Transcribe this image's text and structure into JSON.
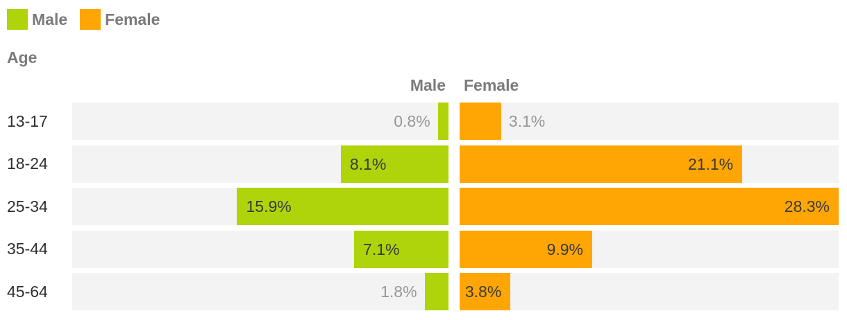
{
  "legend": {
    "items": [
      {
        "label": "Male",
        "color": "#afd40a"
      },
      {
        "label": "Female",
        "color": "#ffa605"
      }
    ]
  },
  "columns": {
    "male_header": "Male",
    "female_header": "Female"
  },
  "chart_data": {
    "type": "bar",
    "variant": "diverging-horizontal",
    "title": "",
    "axis_title": "Age",
    "categories": [
      "13-17",
      "18-24",
      "25-34",
      "35-44",
      "45-64"
    ],
    "series": [
      {
        "name": "Male",
        "color": "#afd40a",
        "values": [
          0.8,
          8.1,
          15.9,
          7.1,
          1.8
        ],
        "labels": [
          "0.8%",
          "8.1%",
          "15.9%",
          "7.1%",
          "1.8%"
        ],
        "label_inside": [
          false,
          true,
          true,
          true,
          false
        ]
      },
      {
        "name": "Female",
        "color": "#ffa605",
        "values": [
          3.1,
          21.1,
          28.3,
          9.9,
          3.8
        ],
        "labels": [
          "3.1%",
          "21.1%",
          "28.3%",
          "9.9%",
          "3.8%"
        ],
        "label_inside": [
          false,
          true,
          true,
          true,
          true
        ]
      }
    ],
    "xmax": 28.3,
    "xlim": [
      0,
      28.3
    ],
    "track_color": "#f3f3f3",
    "grid": false,
    "legend_position": "top-left"
  }
}
